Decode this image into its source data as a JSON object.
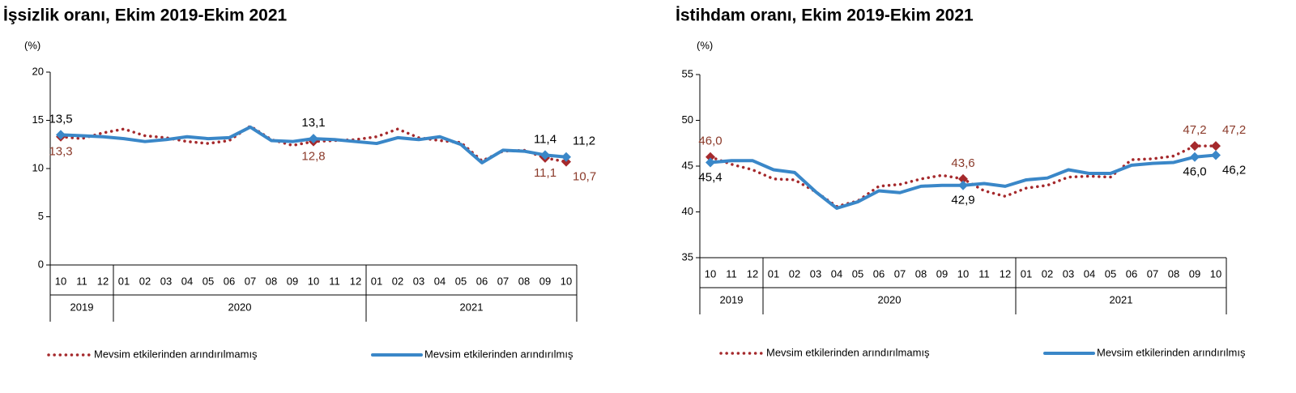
{
  "chart_data": [
    {
      "type": "line",
      "title": "İşsizlik oranı, Ekim 2019-Ekim 2021",
      "ylabel": "(%)",
      "categories": [
        "10",
        "11",
        "12",
        "01",
        "02",
        "03",
        "04",
        "05",
        "06",
        "07",
        "08",
        "09",
        "10",
        "11",
        "12",
        "01",
        "02",
        "03",
        "04",
        "05",
        "06",
        "07",
        "08",
        "09",
        "10"
      ],
      "year_groups": [
        "2019",
        "2020",
        "2021"
      ],
      "ylim": [
        0,
        20
      ],
      "yticks": [
        0,
        5,
        10,
        15,
        20
      ],
      "series": [
        {
          "name": "Mevsim etkilerinden arındırılmamış",
          "color": "#a5292c",
          "style": "dotted",
          "values": [
            13.3,
            13.1,
            13.7,
            14.1,
            13.4,
            13.2,
            12.8,
            12.6,
            12.9,
            14.4,
            13.0,
            12.4,
            12.8,
            12.9,
            13.0,
            13.3,
            14.1,
            13.2,
            12.9,
            12.7,
            10.8,
            11.8,
            11.9,
            11.1,
            10.7
          ],
          "value_labels": [
            "13,3",
            null,
            null,
            null,
            null,
            null,
            null,
            null,
            null,
            null,
            null,
            null,
            "12,8",
            null,
            null,
            null,
            null,
            null,
            null,
            null,
            null,
            null,
            null,
            "11,1",
            "10,7"
          ]
        },
        {
          "name": "Mevsim etkilerinden arındırılmış",
          "color": "#3a87c8",
          "style": "solid",
          "values": [
            13.5,
            13.4,
            13.3,
            13.1,
            12.8,
            13.0,
            13.3,
            13.1,
            13.2,
            14.3,
            12.9,
            12.8,
            13.1,
            13.0,
            12.8,
            12.6,
            13.2,
            13.0,
            13.3,
            12.5,
            10.6,
            11.9,
            11.8,
            11.4,
            11.2
          ],
          "value_labels": [
            "13,5",
            null,
            null,
            null,
            null,
            null,
            null,
            null,
            null,
            null,
            null,
            null,
            "13,1",
            null,
            null,
            null,
            null,
            null,
            null,
            null,
            null,
            null,
            null,
            "11,4",
            "11,2"
          ]
        }
      ]
    },
    {
      "type": "line",
      "title": "İstihdam oranı, Ekim 2019-Ekim 2021",
      "ylabel": "(%)",
      "categories": [
        "10",
        "11",
        "12",
        "01",
        "02",
        "03",
        "04",
        "05",
        "06",
        "07",
        "08",
        "09",
        "10",
        "11",
        "12",
        "01",
        "02",
        "03",
        "04",
        "05",
        "06",
        "07",
        "08",
        "09",
        "10"
      ],
      "year_groups": [
        "2019",
        "2020",
        "2021"
      ],
      "ylim": [
        35,
        55
      ],
      "yticks": [
        35,
        40,
        45,
        50,
        55
      ],
      "series": [
        {
          "name": "Mevsim etkilerinden arındırılmamış",
          "color": "#a5292c",
          "style": "dotted",
          "values": [
            46.0,
            45.2,
            44.6,
            43.6,
            43.5,
            42.2,
            40.6,
            41.2,
            42.8,
            43.0,
            43.6,
            44.0,
            43.6,
            42.3,
            41.7,
            42.6,
            42.9,
            43.8,
            43.9,
            43.8,
            45.7,
            45.8,
            46.1,
            47.2,
            47.2
          ],
          "value_labels": [
            "46,0",
            null,
            null,
            null,
            null,
            null,
            null,
            null,
            null,
            null,
            null,
            null,
            "43,6",
            null,
            null,
            null,
            null,
            null,
            null,
            null,
            null,
            null,
            null,
            "47,2",
            "47,2"
          ]
        },
        {
          "name": "Mevsim etkilerinden arındırılmış",
          "color": "#3a87c8",
          "style": "solid",
          "values": [
            45.4,
            45.6,
            45.6,
            44.6,
            44.3,
            42.2,
            40.4,
            41.1,
            42.3,
            42.1,
            42.8,
            42.9,
            42.9,
            43.1,
            42.8,
            43.5,
            43.7,
            44.6,
            44.2,
            44.2,
            45.1,
            45.3,
            45.4,
            46.0,
            46.2
          ],
          "value_labels": [
            "45,4",
            null,
            null,
            null,
            null,
            null,
            null,
            null,
            null,
            null,
            null,
            null,
            "42,9",
            null,
            null,
            null,
            null,
            null,
            null,
            null,
            null,
            null,
            null,
            "46,0",
            "46,2"
          ]
        }
      ]
    }
  ]
}
